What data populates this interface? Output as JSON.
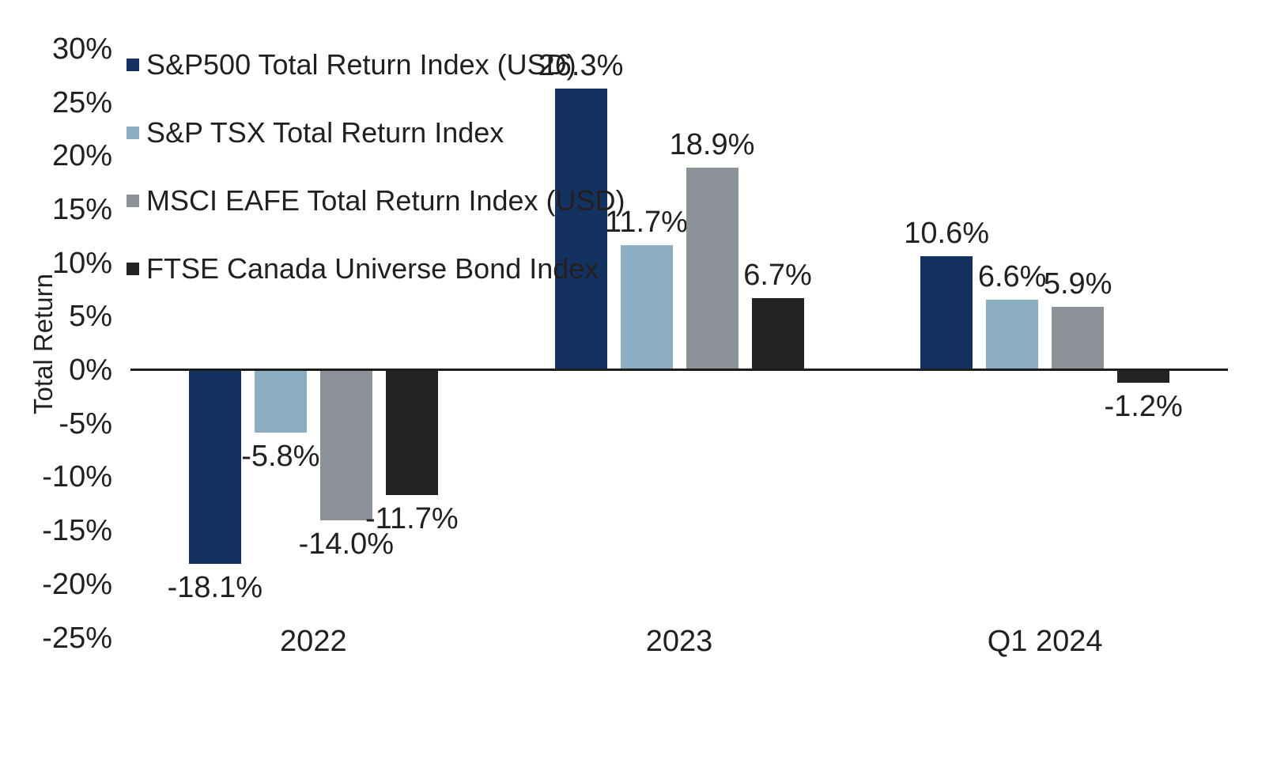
{
  "chart_data": {
    "type": "bar",
    "title": "",
    "ylabel": "Total Return",
    "xlabel": "",
    "categories": [
      "2022",
      "2023",
      "Q1 2024"
    ],
    "series": [
      {
        "name": "S&P500 Total Return Index (USD)",
        "color": "#14325F",
        "values": [
          -18.1,
          26.3,
          10.6
        ],
        "labels": [
          "-18.1%",
          "26.3%",
          "10.6%"
        ]
      },
      {
        "name": "S&P TSX Total Return Index",
        "color": "#8CAEC3",
        "values": [
          -5.8,
          11.7,
          6.6
        ],
        "labels": [
          "-5.8%",
          "11.7%",
          "6.6%"
        ]
      },
      {
        "name": "MSCI EAFE Total Return Index (USD)",
        "color": "#8D9298",
        "values": [
          -14.0,
          18.9,
          5.9
        ],
        "labels": [
          "-14.0%",
          "18.9%",
          "5.9%"
        ]
      },
      {
        "name": "FTSE Canada Universe Bond Index",
        "color": "#252223",
        "values": [
          -11.7,
          6.7,
          -1.2
        ],
        "labels": [
          "-11.7%",
          "6.7%",
          "-1.2%"
        ]
      }
    ],
    "yticks": [
      {
        "value": 30,
        "label": "30%"
      },
      {
        "value": 25,
        "label": "25%"
      },
      {
        "value": 20,
        "label": "20%"
      },
      {
        "value": 15,
        "label": "15%"
      },
      {
        "value": 10,
        "label": "10%"
      },
      {
        "value": 5,
        "label": "5%"
      },
      {
        "value": 0,
        "label": "0%"
      },
      {
        "value": -5,
        "label": "-5%"
      },
      {
        "value": -10,
        "label": "-10%"
      },
      {
        "value": -15,
        "label": "-15%"
      },
      {
        "value": -20,
        "label": "-20%"
      },
      {
        "value": -25,
        "label": "-25%"
      }
    ],
    "ylim": [
      -25,
      30
    ],
    "grid": false,
    "legend_position": "upper-left-inside",
    "axis_color": "#1C1C1C",
    "text_color": "#231F20",
    "background": "#FFFFFF"
  }
}
